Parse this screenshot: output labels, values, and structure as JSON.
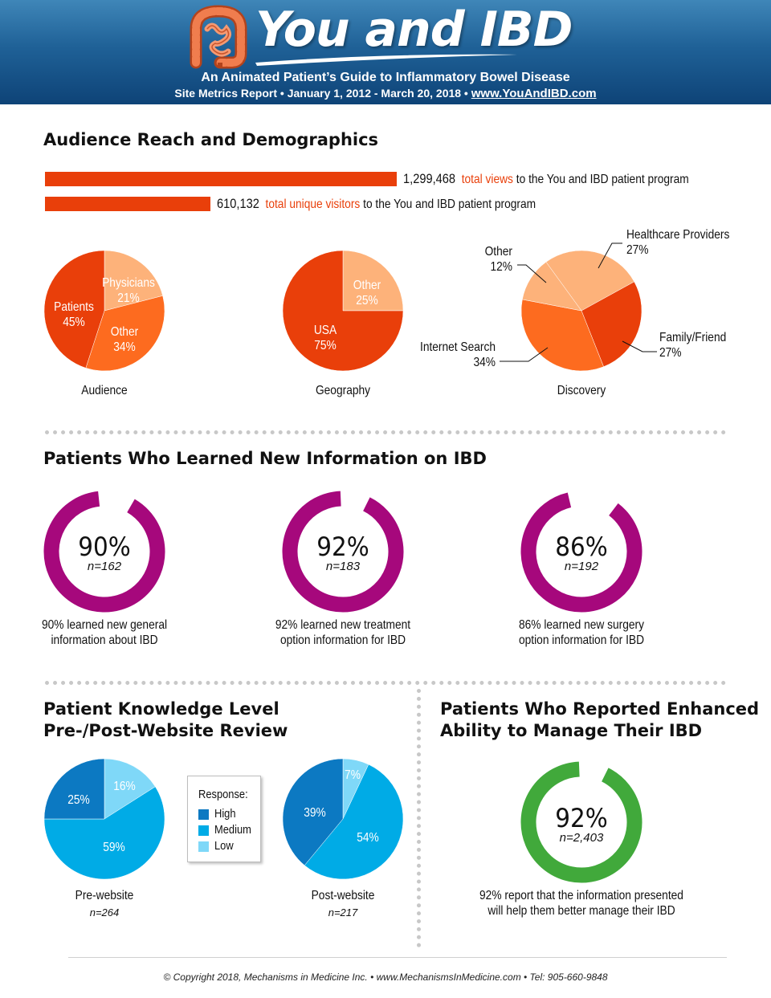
{
  "header": {
    "title": "You and IBD",
    "subtitle": "An Animated Patient’s Guide to Inflammatory Bowel Disease",
    "report_line": "Site Metrics Report • January 1, 2012 - March 20, 2018 • ",
    "url": "www.YouAndIBD.com",
    "logo_icon": "intestine-icon"
  },
  "sections": {
    "reach": "Audience Reach and Demographics",
    "learned": "Patients Who Learned New Information on IBD",
    "knowledge_line1": "Patient Knowledge Level",
    "knowledge_line2": "Pre-/Post-Website Review",
    "enhanced_line1": "Patients Who Reported Enhanced",
    "enhanced_line2": "Ability to Manage Their IBD"
  },
  "views": {
    "total_views": {
      "number": "1,299,468",
      "highlight": "total views",
      "rest": "to the You and IBD patient program",
      "value": 1299468
    },
    "unique_visitors": {
      "number": "610,132",
      "highlight": "total unique visitors",
      "rest": "to the You and IBD patient program",
      "value": 610132
    }
  },
  "colors": {
    "bar": "#e93f0a",
    "pie_dark": "#e93f0a",
    "pie_mid": "#fd6b1f",
    "pie_light": "#fdb27a",
    "donut_magenta": "#a6087c",
    "donut_green": "#41a93b",
    "knowledge_high": "#0c79c2",
    "knowledge_medium": "#00abe6",
    "knowledge_low": "#7fd8f8"
  },
  "legend": {
    "title": "Response:",
    "items": [
      {
        "label": "High",
        "color": "#0c79c2"
      },
      {
        "label": "Medium",
        "color": "#00abe6"
      },
      {
        "label": "Low",
        "color": "#7fd8f8"
      }
    ]
  },
  "chart_data": [
    {
      "type": "bar",
      "categories": [
        "total views",
        "total unique visitors"
      ],
      "values": [
        1299468,
        610132
      ]
    },
    {
      "type": "pie",
      "title": "Audience",
      "labels": [
        "Physicians",
        "Other",
        "Patients"
      ],
      "values": [
        21,
        34,
        45
      ],
      "display": [
        "21%",
        "34%",
        "45%"
      ],
      "colors": [
        "#fdb27a",
        "#fd6b1f",
        "#e93f0a"
      ]
    },
    {
      "type": "pie",
      "title": "Geography",
      "labels": [
        "Other",
        "USA"
      ],
      "values": [
        25,
        75
      ],
      "display": [
        "25%",
        "75%"
      ],
      "colors": [
        "#fdb27a",
        "#e93f0a"
      ]
    },
    {
      "type": "pie",
      "title": "Discovery",
      "labels": [
        "Healthcare Providers",
        "Family/Friend",
        "Internet Search",
        "Other"
      ],
      "values": [
        27,
        27,
        34,
        12
      ],
      "display": [
        "27%",
        "27%",
        "34%",
        "12%"
      ],
      "colors": [
        "#fdb27a",
        "#e93f0a",
        "#fd6b1f",
        "#fdb27a"
      ]
    },
    {
      "type": "pie",
      "title": "Pre-website",
      "n": "n=264",
      "labels": [
        "Low",
        "Medium",
        "High"
      ],
      "values": [
        16,
        59,
        25
      ],
      "display": [
        "16%",
        "59%",
        "25%"
      ],
      "colors": [
        "#7fd8f8",
        "#00abe6",
        "#0c79c2"
      ]
    },
    {
      "type": "pie",
      "title": "Post-website",
      "n": "n=217",
      "labels": [
        "Low",
        "Medium",
        "High"
      ],
      "values": [
        7,
        54,
        39
      ],
      "display": [
        "7%",
        "54%",
        "39%"
      ],
      "colors": [
        "#7fd8f8",
        "#00abe6",
        "#0c79c2"
      ]
    }
  ],
  "donuts": [
    {
      "value": 90,
      "pct": "90%",
      "n": "n=162",
      "caption1": "90% learned new general",
      "caption2": "information about IBD"
    },
    {
      "value": 92,
      "pct": "92%",
      "n": "n=183",
      "caption1": "92% learned new treatment",
      "caption2": "option information for IBD"
    },
    {
      "value": 86,
      "pct": "86%",
      "n": "n=192",
      "caption1": "86% learned new surgery",
      "caption2": "option information for IBD"
    },
    {
      "value": 92,
      "pct": "92%",
      "n": "n=2,403",
      "caption1": "92% report that the information presented",
      "caption2": "will help them better manage their IBD"
    }
  ],
  "footer": "© Copyright 2018, Mechanisms in Medicine Inc. • www.MechanismsInMedicine.com • Tel: 905-660-9848"
}
